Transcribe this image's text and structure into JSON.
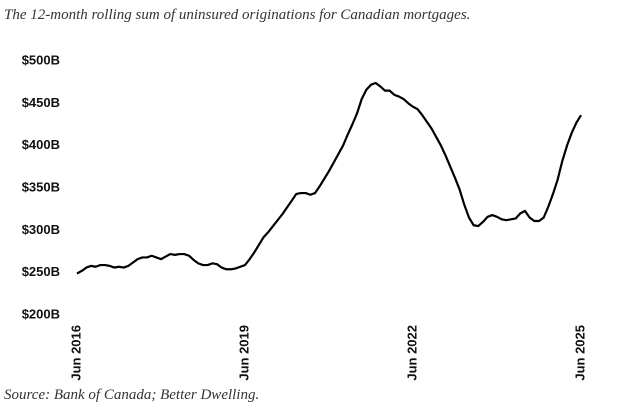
{
  "chart_data": {
    "type": "line",
    "title": "The 12-month rolling sum of uninsured originations for Canadian mortgages.",
    "source": "Source: Bank of Canada; Better Dwelling.",
    "color": "#000000",
    "grid": false,
    "x": [
      "2016-06",
      "2016-07",
      "2016-08",
      "2016-09",
      "2016-10",
      "2016-11",
      "2016-12",
      "2017-01",
      "2017-02",
      "2017-03",
      "2017-04",
      "2017-05",
      "2017-06",
      "2017-07",
      "2017-08",
      "2017-09",
      "2017-10",
      "2017-11",
      "2017-12",
      "2018-01",
      "2018-02",
      "2018-03",
      "2018-04",
      "2018-05",
      "2018-06",
      "2018-07",
      "2018-08",
      "2018-09",
      "2018-10",
      "2018-11",
      "2018-12",
      "2019-01",
      "2019-02",
      "2019-03",
      "2019-04",
      "2019-05",
      "2019-06",
      "2019-07",
      "2019-08",
      "2019-09",
      "2019-10",
      "2019-11",
      "2019-12",
      "2020-01",
      "2020-02",
      "2020-03",
      "2020-04",
      "2020-05",
      "2020-06",
      "2020-07",
      "2020-08",
      "2020-09",
      "2020-10",
      "2020-11",
      "2020-12",
      "2021-01",
      "2021-02",
      "2021-03",
      "2021-04",
      "2021-05",
      "2021-06",
      "2021-07",
      "2021-08",
      "2021-09",
      "2021-10",
      "2021-11",
      "2021-12",
      "2022-01",
      "2022-02",
      "2022-03",
      "2022-04",
      "2022-05",
      "2022-06",
      "2022-07",
      "2022-08",
      "2022-09",
      "2022-10",
      "2022-11",
      "2022-12",
      "2023-01",
      "2023-02",
      "2023-03",
      "2023-04",
      "2023-05",
      "2023-06",
      "2023-07",
      "2023-08",
      "2023-09",
      "2023-10",
      "2023-11",
      "2023-12",
      "2024-01",
      "2024-02",
      "2024-03",
      "2024-04",
      "2024-05",
      "2024-06",
      "2024-07",
      "2024-08",
      "2024-09",
      "2024-10",
      "2024-11",
      "2024-12",
      "2025-01",
      "2025-02",
      "2025-03",
      "2025-04",
      "2025-05",
      "2025-06"
    ],
    "values": [
      249,
      252,
      256,
      258,
      257,
      259,
      259,
      258,
      256,
      257,
      256,
      258,
      262,
      266,
      268,
      268,
      270,
      268,
      266,
      269,
      272,
      271,
      272,
      272,
      270,
      265,
      261,
      259,
      259,
      261,
      260,
      256,
      254,
      254,
      255,
      257,
      259,
      266,
      274,
      283,
      292,
      298,
      305,
      312,
      319,
      327,
      335,
      343,
      344,
      344,
      342,
      344,
      352,
      361,
      370,
      380,
      390,
      400,
      413,
      425,
      438,
      455,
      466,
      472,
      474,
      470,
      465,
      465,
      460,
      458,
      455,
      450,
      446,
      443,
      436,
      428,
      420,
      410,
      400,
      388,
      375,
      362,
      348,
      330,
      315,
      306,
      305,
      310,
      316,
      318,
      316,
      313,
      312,
      313,
      314,
      320,
      323,
      315,
      311,
      311,
      315,
      328,
      343,
      360,
      382,
      400,
      415,
      427,
      436
    ],
    "ylim": [
      200,
      500
    ],
    "yticks": [
      {
        "value": 200,
        "label": "$200B"
      },
      {
        "value": 250,
        "label": "$250B"
      },
      {
        "value": 300,
        "label": "$300B"
      },
      {
        "value": 350,
        "label": "$350B"
      },
      {
        "value": 400,
        "label": "$400B"
      },
      {
        "value": 450,
        "label": "$450B"
      },
      {
        "value": 500,
        "label": "$500B"
      }
    ],
    "xticks": [
      {
        "value": "2016-06",
        "label": "Jun 2016"
      },
      {
        "value": "2019-06",
        "label": "Jun 2019"
      },
      {
        "value": "2022-06",
        "label": "Jun 2022"
      },
      {
        "value": "2025-06",
        "label": "Jun 2025"
      }
    ]
  }
}
